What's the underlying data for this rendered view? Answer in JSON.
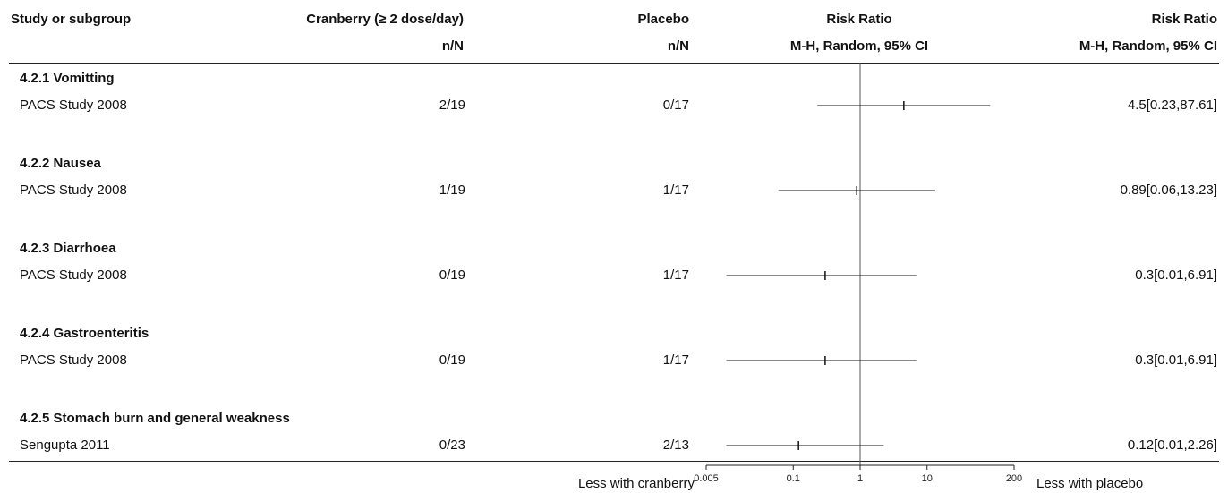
{
  "header": {
    "study_col": "Study or subgroup",
    "cranberry_col": "Cranberry (≥ 2 dose/day)",
    "cranberry_sub": "n/N",
    "placebo_col": "Placebo",
    "placebo_sub": "n/N",
    "rr_plot_col": "Risk Ratio",
    "rr_plot_sub": "M-H, Random, 95% CI",
    "rr_text_col": "Risk Ratio",
    "rr_text_sub": "M-H, Random, 95% CI"
  },
  "subgroups": [
    {
      "title": "4.2.1 Vomitting",
      "study": "PACS Study 2008",
      "cranberry": "2/19",
      "placebo": "0/17",
      "ci_text": "4.5[0.23,87.61]"
    },
    {
      "title": "4.2.2 Nausea",
      "study": "PACS Study 2008",
      "cranberry": "1/19",
      "placebo": "1/17",
      "ci_text": "0.89[0.06,13.23]"
    },
    {
      "title": "4.2.3 Diarrhoea",
      "study": "PACS Study 2008",
      "cranberry": "0/19",
      "placebo": "1/17",
      "ci_text": "0.3[0.01,6.91]"
    },
    {
      "title": "4.2.4 Gastroenteritis",
      "study": "PACS Study 2008",
      "cranberry": "0/19",
      "placebo": "1/17",
      "ci_text": "0.3[0.01,6.91]"
    },
    {
      "title": "4.2.5 Stomach burn and general weakness",
      "study": "Sengupta 2011",
      "cranberry": "0/23",
      "placebo": "2/13",
      "ci_text": "0.12[0.01,2.26]"
    }
  ],
  "footer": {
    "left_label": "Less with cranberry",
    "right_label": "Less with placebo"
  },
  "chart_data": {
    "type": "forest",
    "scale": "log",
    "xlim": [
      0.005,
      200
    ],
    "null_line": 1,
    "ticks": [
      0.005,
      0.1,
      1,
      10,
      200
    ],
    "tick_labels": [
      "0.005",
      "0.1",
      "1",
      "10",
      "200"
    ],
    "studies": [
      {
        "rr": 4.5,
        "lo": 0.23,
        "hi": 87.61
      },
      {
        "rr": 0.89,
        "lo": 0.06,
        "hi": 13.23
      },
      {
        "rr": 0.3,
        "lo": 0.01,
        "hi": 6.91
      },
      {
        "rr": 0.3,
        "lo": 0.01,
        "hi": 6.91
      },
      {
        "rr": 0.12,
        "lo": 0.01,
        "hi": 2.26
      }
    ]
  }
}
